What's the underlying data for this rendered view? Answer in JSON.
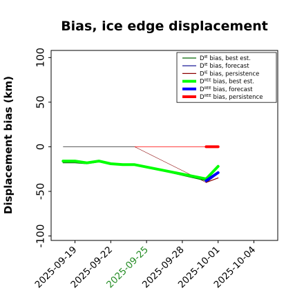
{
  "chart_data": {
    "type": "line",
    "title": "Bias, ice edge displacement",
    "ylabel": "Displacement bias (km)",
    "xlabel": "",
    "ylim": [
      -105,
      108
    ],
    "xlim": [
      "2025-09-17",
      "2025-10-06"
    ],
    "yticks": [
      100,
      50,
      0,
      -50,
      -100
    ],
    "xticks": [
      {
        "label": "2025-09-19",
        "color": "#000000"
      },
      {
        "label": "2025-09-22",
        "color": "#000000"
      },
      {
        "label": "2025-09-25",
        "color": "#228B22"
      },
      {
        "label": "2025-09-28",
        "color": "#000000"
      },
      {
        "label": "2025-10-01",
        "color": "#000000"
      },
      {
        "label": "2025-10-04",
        "color": "#000000"
      }
    ],
    "grid": false,
    "legend_position": "top-right",
    "series": [
      {
        "name": "D",
        "name_sup": "IE",
        "name_suffix": " bias, best est.",
        "color": "#006400",
        "width": 1.2,
        "points": [
          [
            "2025-09-18",
            -18
          ],
          [
            "2025-09-19",
            -18
          ],
          [
            "2025-09-20",
            -19
          ],
          [
            "2025-09-21",
            -17
          ],
          [
            "2025-09-22",
            -19
          ],
          [
            "2025-09-23",
            -20
          ],
          [
            "2025-09-24",
            -20
          ],
          [
            "2025-09-30",
            -38
          ],
          [
            "2025-10-01",
            -22
          ]
        ]
      },
      {
        "name": "D",
        "name_sup": "IE",
        "name_suffix": " bias, forecast",
        "color": "#00008B",
        "width": 1.2,
        "points": [
          [
            "2025-09-30",
            -40
          ],
          [
            "2025-10-01",
            -30
          ]
        ]
      },
      {
        "name": "D",
        "name_sup": "IE",
        "name_suffix": " bias, persistence",
        "color": "#8B0000",
        "width": 1.2,
        "points": [
          [
            "2025-09-30",
            -40
          ],
          [
            "2025-10-01",
            -35
          ]
        ]
      },
      {
        "name": "D",
        "name_sup": "IIEE",
        "name_suffix": " bias, best est.",
        "color": "#00FF00",
        "width": 4,
        "points": [
          [
            "2025-09-18",
            -16
          ],
          [
            "2025-09-19",
            -16
          ],
          [
            "2025-09-20",
            -18
          ],
          [
            "2025-09-21",
            -16
          ],
          [
            "2025-09-22",
            -19
          ],
          [
            "2025-09-23",
            -20
          ],
          [
            "2025-09-24",
            -20
          ],
          [
            "2025-09-30",
            -36
          ],
          [
            "2025-10-01",
            -22
          ]
        ]
      },
      {
        "name": "D",
        "name_sup": "IIEE",
        "name_suffix": " bias, forecast",
        "color": "#0000FF",
        "width": 4,
        "points": [
          [
            "2025-09-30",
            -38
          ],
          [
            "2025-10-01",
            -29
          ]
        ]
      },
      {
        "name": "D",
        "name_sup": "IIEE",
        "name_suffix": " bias, persistence",
        "color": "#FF0000",
        "width": 4,
        "points": [
          [
            "2025-09-30",
            0
          ],
          [
            "2025-10-01",
            0
          ]
        ]
      }
    ],
    "extra_lines": [
      {
        "color": "#555555",
        "width": 1,
        "points": [
          [
            "2025-09-18",
            0
          ],
          [
            "2025-09-24",
            0
          ]
        ]
      },
      {
        "color": "#FF0000",
        "width": 0.8,
        "points": [
          [
            "2025-09-24",
            0
          ],
          [
            "2025-09-30",
            0
          ]
        ]
      },
      {
        "color": "#8B0000",
        "width": 0.6,
        "points": [
          [
            "2025-09-24",
            0
          ],
          [
            "2025-09-30",
            -40
          ]
        ]
      }
    ]
  }
}
